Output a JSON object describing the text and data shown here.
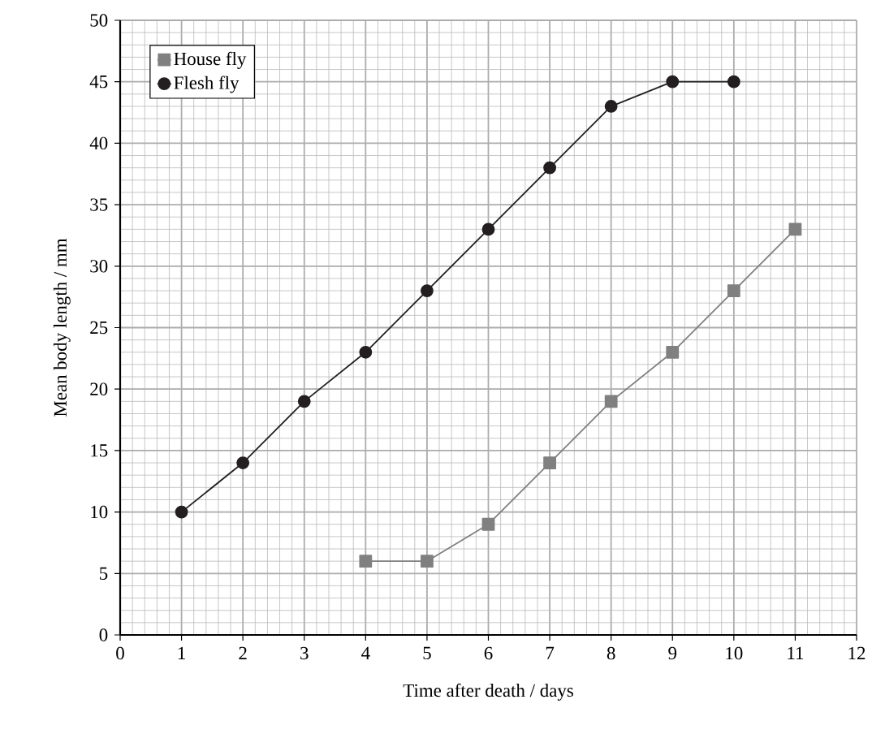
{
  "chart_data": {
    "type": "line",
    "xlabel": "Time after death / days",
    "ylabel": "Mean body length / mm",
    "xlim": [
      0,
      12
    ],
    "xticks": [
      0,
      1,
      2,
      3,
      4,
      5,
      6,
      7,
      8,
      9,
      10,
      11,
      12
    ],
    "ylim": [
      0,
      50
    ],
    "yticks": [
      0,
      5,
      10,
      15,
      20,
      25,
      30,
      35,
      40,
      45,
      50
    ],
    "grid": true,
    "legend": "top left",
    "line_style": "solid",
    "series": [
      {
        "name": "House fly",
        "color": "#808080",
        "marker": "square",
        "x": [
          4,
          5,
          6,
          7,
          8,
          9,
          10,
          11
        ],
        "values": [
          6,
          6,
          9,
          14,
          19,
          23,
          28,
          33
        ]
      },
      {
        "name": "Flesh fly",
        "color": "#231f20",
        "marker": "circle",
        "x": [
          1,
          2,
          3,
          4,
          5,
          6,
          7,
          8,
          9,
          10
        ],
        "values": [
          10,
          14,
          19,
          23,
          28,
          33,
          38,
          43,
          45,
          45
        ]
      }
    ]
  }
}
